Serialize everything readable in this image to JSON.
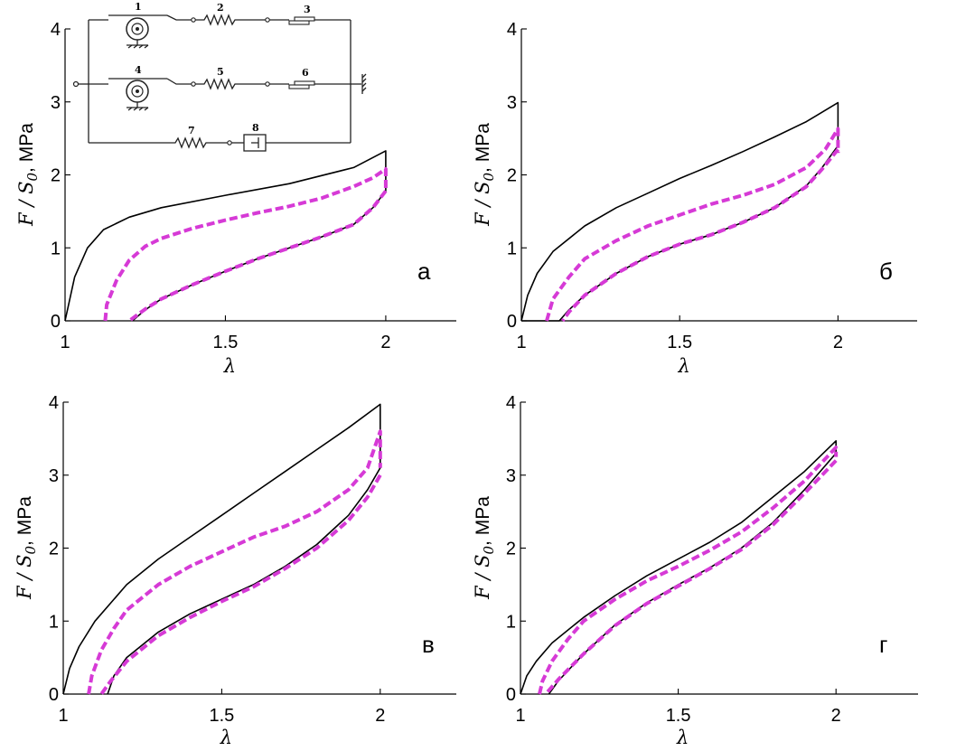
{
  "chart_data": [
    {
      "type": "line",
      "panel_label": "а",
      "xlabel": "λ",
      "ylabel_main": "F / S",
      "ylabel_sub": "0",
      "ylabel_unit": ",  MPa",
      "xlim": [
        1,
        2.22
      ],
      "ylim": [
        0,
        4
      ],
      "xticks": [
        "1",
        "1.5",
        "2"
      ],
      "yticks": [
        "0",
        "1",
        "2",
        "3",
        "4"
      ],
      "series": [
        {
          "style": "solid-black",
          "x": [
            1.0,
            1.03,
            1.07,
            1.12,
            1.2,
            1.3,
            1.5,
            1.7,
            1.9,
            2.0,
            2.0,
            1.96,
            1.9,
            1.8,
            1.7,
            1.6,
            1.5,
            1.4,
            1.3,
            1.25,
            1.21
          ],
          "y": [
            0.0,
            0.6,
            1.0,
            1.25,
            1.42,
            1.55,
            1.72,
            1.88,
            2.1,
            2.33,
            1.78,
            1.55,
            1.32,
            1.15,
            1.0,
            0.85,
            0.68,
            0.5,
            0.3,
            0.15,
            0.0
          ]
        },
        {
          "style": "dashed-magenta",
          "x": [
            1.125,
            1.13,
            1.16,
            1.2,
            1.25,
            1.3,
            1.4,
            1.5,
            1.6,
            1.7,
            1.8,
            1.9,
            1.96,
            2.0,
            2.0
          ],
          "y": [
            0.0,
            0.22,
            0.55,
            0.83,
            1.02,
            1.13,
            1.27,
            1.38,
            1.48,
            1.57,
            1.68,
            1.84,
            1.96,
            2.08,
            1.82
          ]
        },
        {
          "style": "dashed-magenta",
          "x": [
            2.0,
            1.96,
            1.9,
            1.8,
            1.7,
            1.6,
            1.5,
            1.4,
            1.3,
            1.25,
            1.2
          ],
          "y": [
            1.78,
            1.55,
            1.32,
            1.15,
            1.0,
            0.85,
            0.68,
            0.5,
            0.3,
            0.16,
            0.0
          ]
        }
      ]
    },
    {
      "type": "line",
      "panel_label": "б",
      "xlabel": "λ",
      "ylabel_main": "F / S",
      "ylabel_sub": "0",
      "ylabel_unit": ",  MPa",
      "xlim": [
        1,
        2.25
      ],
      "ylim": [
        0,
        4
      ],
      "xticks": [
        "1",
        "1.5",
        "2"
      ],
      "yticks": [
        "0",
        "1",
        "2",
        "3",
        "4"
      ],
      "series": [
        {
          "style": "solid-black",
          "x": [
            1.0,
            1.02,
            1.05,
            1.1,
            1.2,
            1.3,
            1.4,
            1.5,
            1.6,
            1.7,
            1.8,
            1.9,
            2.0,
            2.0,
            1.95,
            1.9,
            1.8,
            1.7,
            1.6,
            1.5,
            1.4,
            1.3,
            1.2,
            1.15,
            1.12,
            1.0
          ],
          "y": [
            0.0,
            0.35,
            0.65,
            0.95,
            1.3,
            1.55,
            1.75,
            1.95,
            2.13,
            2.32,
            2.52,
            2.73,
            2.99,
            2.4,
            2.1,
            1.85,
            1.55,
            1.35,
            1.18,
            1.05,
            0.88,
            0.65,
            0.35,
            0.15,
            0.0,
            0.0
          ]
        },
        {
          "style": "dashed-magenta",
          "x": [
            1.08,
            1.1,
            1.15,
            1.2,
            1.3,
            1.4,
            1.5,
            1.6,
            1.7,
            1.8,
            1.9,
            1.96,
            2.0,
            2.0
          ],
          "y": [
            0.0,
            0.3,
            0.6,
            0.85,
            1.1,
            1.3,
            1.45,
            1.6,
            1.72,
            1.87,
            2.1,
            2.35,
            2.63,
            2.3
          ]
        },
        {
          "style": "dashed-magenta",
          "x": [
            2.0,
            1.95,
            1.9,
            1.8,
            1.7,
            1.6,
            1.5,
            1.4,
            1.3,
            1.2,
            1.15,
            1.13
          ],
          "y": [
            2.35,
            2.08,
            1.84,
            1.55,
            1.35,
            1.18,
            1.05,
            0.88,
            0.65,
            0.35,
            0.12,
            0.0
          ]
        }
      ]
    },
    {
      "type": "line",
      "panel_label": "в",
      "xlabel": "λ",
      "ylabel_main": "F / S",
      "ylabel_sub": "0",
      "ylabel_unit": ",  MPa",
      "xlim": [
        1,
        2.24
      ],
      "ylim": [
        0,
        4
      ],
      "xticks": [
        "1",
        "1.5",
        "2"
      ],
      "yticks": [
        "0",
        "1",
        "2",
        "3",
        "4"
      ],
      "series": [
        {
          "style": "solid-black",
          "x": [
            1.0,
            1.02,
            1.05,
            1.1,
            1.2,
            1.3,
            1.4,
            1.5,
            1.6,
            1.7,
            1.8,
            1.9,
            2.0,
            2.0,
            1.96,
            1.9,
            1.8,
            1.7,
            1.6,
            1.5,
            1.4,
            1.3,
            1.2,
            1.16,
            1.14
          ],
          "y": [
            0.0,
            0.35,
            0.65,
            1.0,
            1.5,
            1.85,
            2.15,
            2.45,
            2.75,
            3.05,
            3.35,
            3.65,
            3.97,
            3.1,
            2.8,
            2.45,
            2.05,
            1.75,
            1.5,
            1.3,
            1.1,
            0.85,
            0.5,
            0.25,
            0.0
          ]
        },
        {
          "style": "dashed-magenta",
          "x": [
            1.08,
            1.09,
            1.12,
            1.16,
            1.2,
            1.3,
            1.4,
            1.5,
            1.6,
            1.7,
            1.8,
            1.9,
            1.96,
            2.0,
            2.0
          ],
          "y": [
            0.0,
            0.25,
            0.6,
            0.9,
            1.15,
            1.5,
            1.75,
            1.95,
            2.15,
            2.3,
            2.5,
            2.8,
            3.1,
            3.6,
            3.1
          ]
        },
        {
          "style": "dashed-magenta",
          "x": [
            2.0,
            1.96,
            1.9,
            1.8,
            1.7,
            1.6,
            1.5,
            1.4,
            1.3,
            1.2,
            1.15,
            1.12
          ],
          "y": [
            3.0,
            2.7,
            2.38,
            2.0,
            1.72,
            1.47,
            1.27,
            1.05,
            0.8,
            0.45,
            0.18,
            0.0
          ]
        }
      ]
    },
    {
      "type": "line",
      "panel_label": "г",
      "xlabel": "λ",
      "ylabel_main": "F / S",
      "ylabel_sub": "0",
      "ylabel_unit": ",  MPa",
      "xlim": [
        1,
        2.26
      ],
      "ylim": [
        0,
        4
      ],
      "xticks": [
        "1",
        "1.5",
        "2"
      ],
      "yticks": [
        "0",
        "1",
        "2",
        "3",
        "4"
      ],
      "series": [
        {
          "style": "solid-black",
          "x": [
            1.0,
            1.02,
            1.05,
            1.1,
            1.2,
            1.3,
            1.4,
            1.5,
            1.6,
            1.7,
            1.8,
            1.9,
            2.0,
            2.0,
            1.9,
            1.8,
            1.7,
            1.6,
            1.5,
            1.4,
            1.3,
            1.2,
            1.12,
            1.09
          ],
          "y": [
            0.0,
            0.25,
            0.45,
            0.7,
            1.05,
            1.35,
            1.62,
            1.85,
            2.08,
            2.35,
            2.7,
            3.05,
            3.47,
            3.3,
            2.8,
            2.35,
            2.0,
            1.73,
            1.5,
            1.25,
            0.95,
            0.55,
            0.18,
            0.0
          ]
        },
        {
          "style": "dashed-magenta",
          "x": [
            1.06,
            1.07,
            1.1,
            1.15,
            1.2,
            1.3,
            1.4,
            1.5,
            1.6,
            1.7,
            1.8,
            1.9,
            2.0,
            2.0
          ],
          "y": [
            0.0,
            0.18,
            0.45,
            0.75,
            1.0,
            1.3,
            1.55,
            1.75,
            1.97,
            2.22,
            2.55,
            2.92,
            3.38,
            3.25
          ]
        },
        {
          "style": "dashed-magenta",
          "x": [
            2.0,
            1.9,
            1.8,
            1.7,
            1.6,
            1.5,
            1.4,
            1.3,
            1.2,
            1.12,
            1.08
          ],
          "y": [
            3.2,
            2.75,
            2.32,
            1.98,
            1.72,
            1.48,
            1.24,
            0.94,
            0.55,
            0.2,
            0.0
          ]
        }
      ]
    }
  ],
  "inset_schematic": {
    "labels": [
      "1",
      "2",
      "3",
      "4",
      "5",
      "6",
      "7",
      "8"
    ]
  },
  "colors": {
    "solid": "#000000",
    "dashed": "#d63ad6"
  }
}
